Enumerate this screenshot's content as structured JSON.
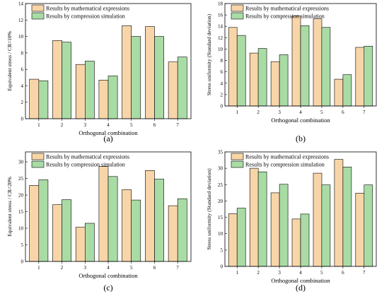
{
  "colors": {
    "mathematical": "#F8D5A8",
    "simulation": "#A9DCA5",
    "stroke": "#000000"
  },
  "chart_data": [
    {
      "type": "bar",
      "panel_label": "(a)",
      "xlabel": "Orthogonal combination",
      "ylabel": "Equivalent stress / CR=10%",
      "categories": [
        "1",
        "2",
        "3",
        "4",
        "5",
        "6",
        "7"
      ],
      "ylim": [
        0,
        14
      ],
      "yticks": [
        0,
        2,
        4,
        6,
        8,
        10,
        12,
        14
      ],
      "grid": false,
      "legend_position": "top-left",
      "series": [
        {
          "name": "Results by mathematical expressions",
          "values": [
            4.8,
            9.5,
            6.6,
            4.7,
            11.3,
            11.2,
            6.9
          ]
        },
        {
          "name": "Results by compression simulation",
          "values": [
            4.6,
            9.3,
            7.0,
            5.2,
            10.0,
            10.0,
            7.5
          ]
        }
      ]
    },
    {
      "type": "bar",
      "panel_label": "(b)",
      "xlabel": "Orthogonal combination",
      "ylabel": "Stress uniformity (Standard deviation)",
      "categories": [
        "1",
        "2",
        "3",
        "4",
        "5",
        "6",
        "7"
      ],
      "ylim": [
        0,
        18
      ],
      "yticks": [
        0,
        2,
        4,
        6,
        8,
        10,
        12,
        14,
        16,
        18
      ],
      "grid": false,
      "legend_position": "top-left",
      "series": [
        {
          "name": "Results by mathematical expressions",
          "values": [
            13.8,
            9.3,
            7.8,
            15.8,
            15.3,
            4.7,
            10.3
          ]
        },
        {
          "name": "Results by compression simulation",
          "values": [
            12.4,
            10.1,
            9.0,
            14.1,
            13.8,
            5.5,
            10.5
          ]
        }
      ]
    },
    {
      "type": "bar",
      "panel_label": "(c)",
      "xlabel": "Orthogonal combination",
      "ylabel": "Equivalent stress / CR=20%",
      "categories": [
        "1",
        "2",
        "3",
        "4",
        "5",
        "6",
        "7"
      ],
      "ylim": [
        0,
        33
      ],
      "yticks": [
        0,
        5,
        10,
        15,
        20,
        25,
        30
      ],
      "grid": false,
      "legend_position": "top-left",
      "series": [
        {
          "name": "Results by mathematical expressions",
          "values": [
            22.9,
            17.1,
            10.3,
            28.6,
            21.6,
            27.4,
            16.8
          ]
        },
        {
          "name": "Results by compression simulation",
          "values": [
            24.6,
            18.6,
            11.5,
            25.6,
            18.5,
            24.8,
            18.9
          ]
        }
      ]
    },
    {
      "type": "bar",
      "panel_label": "(d)",
      "xlabel": "Orthogonal combination",
      "ylabel": "Stress uniformity (Standard deviation)",
      "categories": [
        "1",
        "2",
        "3",
        "4",
        "5",
        "6",
        "7"
      ],
      "ylim": [
        0,
        35
      ],
      "yticks": [
        0,
        5,
        10,
        15,
        20,
        25,
        30,
        35
      ],
      "grid": false,
      "legend_position": "top-left",
      "series": [
        {
          "name": "Results by mathematical expressions",
          "values": [
            16.1,
            30.0,
            22.5,
            14.5,
            28.5,
            32.7,
            22.4
          ]
        },
        {
          "name": "Results by compression simulation",
          "values": [
            17.8,
            28.9,
            25.1,
            16.0,
            24.9,
            30.4,
            24.9
          ]
        }
      ]
    }
  ]
}
